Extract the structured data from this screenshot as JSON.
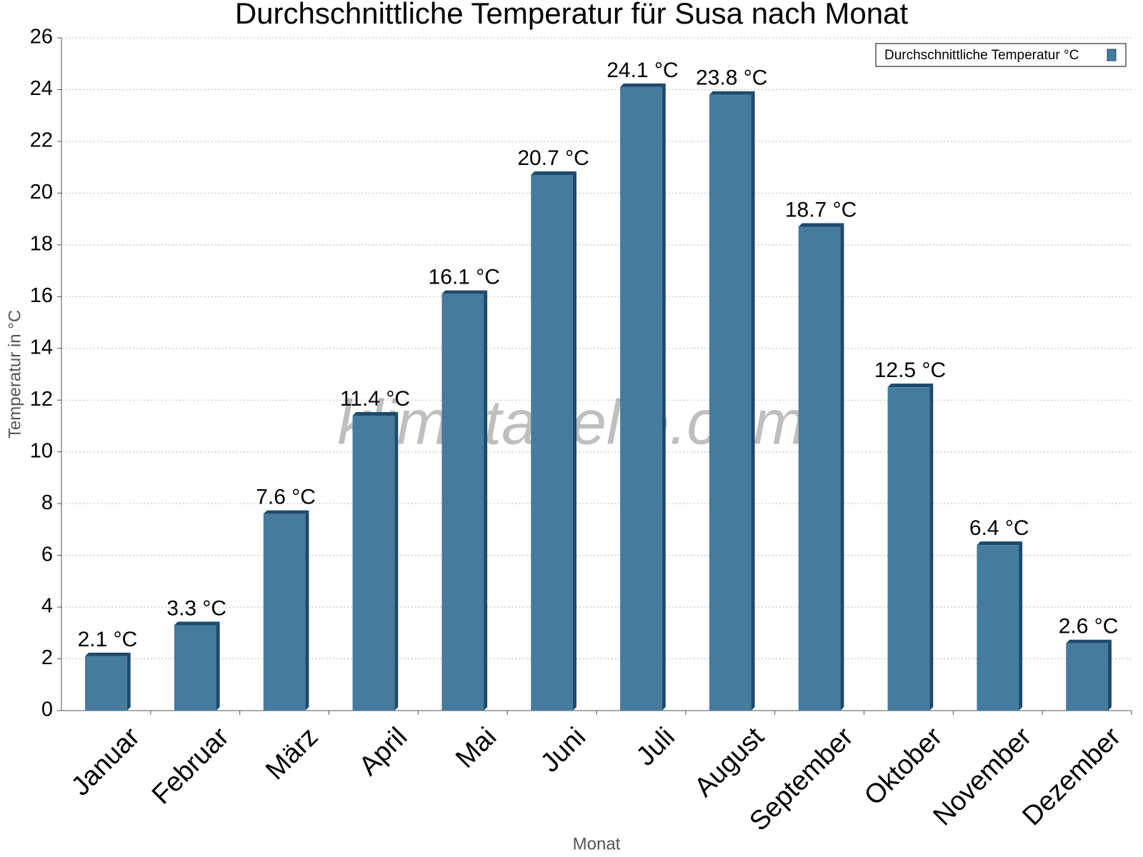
{
  "chart_data": {
    "type": "bar",
    "title": "Durchschnittliche Temperatur für Susa nach Monat",
    "x_label": "Monat",
    "y_label": "Temperatur in °C",
    "watermark": "klimatabelle.com",
    "categories": [
      "Januar",
      "Februar",
      "März",
      "April",
      "Mai",
      "Juni",
      "Juli",
      "August",
      "September",
      "Oktober",
      "November",
      "Dezember"
    ],
    "series": [
      {
        "name": "Durchschnittliche Temperatur °C",
        "color": "#457b9d",
        "values": [
          2.1,
          3.3,
          7.6,
          11.4,
          16.1,
          20.7,
          24.1,
          23.8,
          18.7,
          12.5,
          6.4,
          2.6
        ],
        "value_labels": [
          "2.1 °C",
          "3.3 °C",
          "7.6 °C",
          "11.4 °C",
          "16.1 °C",
          "20.7 °C",
          "24.1 °C",
          "23.8 °C",
          "18.7 °C",
          "12.5 °C",
          "6.4 °C",
          "2.6 °C"
        ]
      }
    ],
    "ylim": [
      0,
      26
    ],
    "yticks": [
      0,
      2,
      4,
      6,
      8,
      10,
      12,
      14,
      16,
      18,
      20,
      22,
      24,
      26
    ],
    "grid": true,
    "legend": "upper right"
  }
}
